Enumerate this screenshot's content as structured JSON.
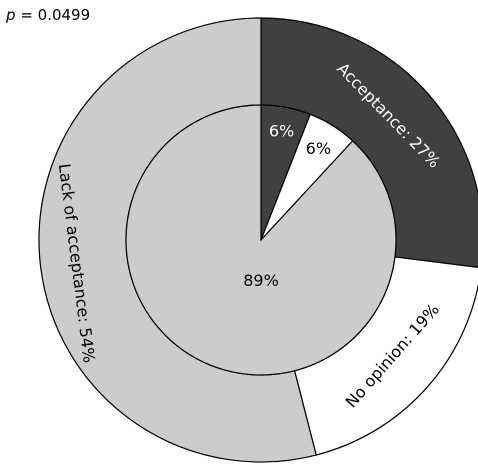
{
  "annotation": {
    "symbol": "p",
    "equals": "= 0.0499"
  },
  "colors": {
    "dark": "#404040",
    "light": "#ffffff",
    "gray": "#cccccc",
    "stroke": "#000000"
  },
  "chart_data": {
    "type": "pie",
    "subtype": "nested-donut",
    "start": "top, clockwise",
    "outer_ring": {
      "slices": [
        {
          "label": "Acceptance: 27%",
          "value": 27,
          "color": "#404040",
          "text_color": "#ffffff"
        },
        {
          "label": "No opinion: 19%",
          "value": 19,
          "color": "#ffffff",
          "text_color": "#000000"
        },
        {
          "label": "Lack of acceptance: 54%",
          "value": 54,
          "color": "#cccccc",
          "text_color": "#000000"
        }
      ]
    },
    "inner_pie": {
      "slices": [
        {
          "label": "6%",
          "value": 6,
          "color": "#404040",
          "text_color": "#ffffff"
        },
        {
          "label": "6%",
          "value": 6,
          "color": "#ffffff",
          "text_color": "#000000"
        },
        {
          "label": "89%",
          "value": 89,
          "color": "#cccccc",
          "text_color": "#000000"
        }
      ]
    }
  }
}
